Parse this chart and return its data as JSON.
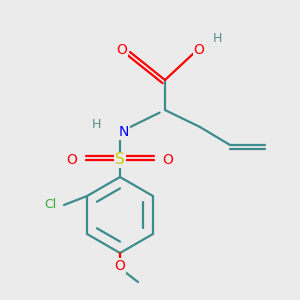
{
  "background_color": "#ebebeb",
  "colors": {
    "C": "#3d8c8c",
    "O": "#ff0000",
    "N": "#0000ff",
    "S": "#cccc00",
    "Cl": "#33aa33",
    "H": "#5a8c8c",
    "bond": "#3d8c8c"
  },
  "bond_lw": 1.6,
  "font_size_atom": 9,
  "font_size_H": 8
}
